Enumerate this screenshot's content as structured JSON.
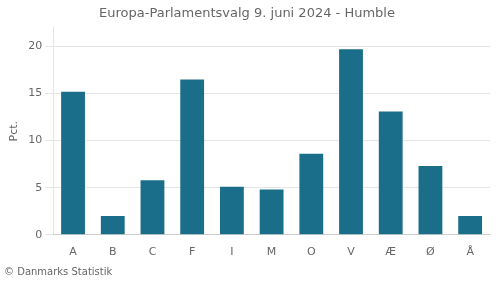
{
  "chart_data": {
    "type": "bar",
    "title": "Europa-Parlamentsvalg 9. juni 2024 - Humble",
    "categories": [
      "A",
      "B",
      "C",
      "F",
      "I",
      "M",
      "O",
      "V",
      "Æ",
      "Ø",
      "Å"
    ],
    "values": [
      15.2,
      2.0,
      5.8,
      16.5,
      5.1,
      4.8,
      8.6,
      19.7,
      13.1,
      7.3,
      2.0
    ],
    "color": "#1a6e8a",
    "ylabel": "Pct.",
    "ylim": [
      0,
      22
    ],
    "yticks": [
      0,
      5,
      10,
      15,
      20
    ],
    "grid": true,
    "annotations": [
      "© Danmarks Statistik"
    ]
  }
}
